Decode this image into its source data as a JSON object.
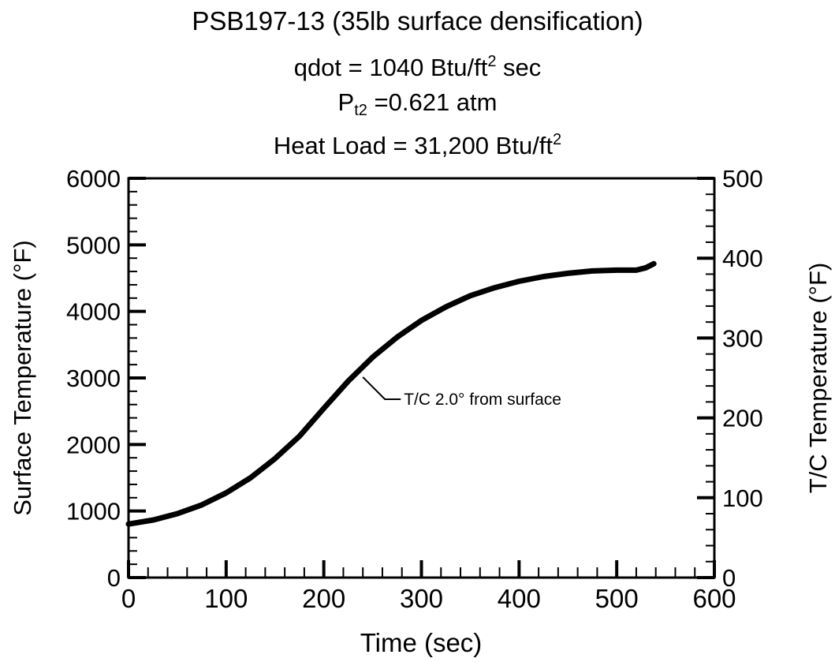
{
  "header": {
    "line1": "PSB197-13 (35lb surface densification)",
    "line2_prefix": "qdot = 1040 Btu/ft",
    "line2_sup": "2",
    "line2_suffix": " sec",
    "line3_prefix": "P",
    "line3_sub": "t2",
    "line3_suffix": " =0.621 atm",
    "line4_prefix": "Heat Load = 31,200 Btu/ft",
    "line4_sup": "2"
  },
  "chart_data": {
    "type": "line",
    "title": "PSB197-13 (35lb surface densification)",
    "xlabel": "Time (sec)",
    "ylabel": "Surface Temperature (°F)",
    "y2label": "T/C Temperature (°F)",
    "xlim": [
      0,
      600
    ],
    "ylim": [
      0,
      6000
    ],
    "y2lim": [
      0,
      500
    ],
    "x_ticks": [
      "0",
      "100",
      "200",
      "300",
      "400",
      "500",
      "600"
    ],
    "y_ticks": [
      "0",
      "1000",
      "2000",
      "3000",
      "4000",
      "5000",
      "6000"
    ],
    "y2_ticks": [
      "0",
      "100",
      "200",
      "300",
      "400",
      "500"
    ],
    "grid": false,
    "series": [
      {
        "axis": "right",
        "x": [
          0,
          25,
          50,
          75,
          100,
          125,
          150,
          175,
          200,
          225,
          250,
          275,
          300,
          325,
          350,
          375,
          400,
          425,
          450,
          475,
          500,
          520,
          530,
          538
        ],
        "y": [
          67,
          72,
          80,
          91,
          106,
          125,
          149,
          177,
          212,
          246,
          276,
          301,
          322,
          339,
          353,
          363,
          371,
          377,
          381,
          384,
          385,
          385,
          388,
          393
        ]
      }
    ],
    "annotations": [
      {
        "text": "T/C 2.0° from surface",
        "x": 240,
        "y": 255
      }
    ]
  }
}
